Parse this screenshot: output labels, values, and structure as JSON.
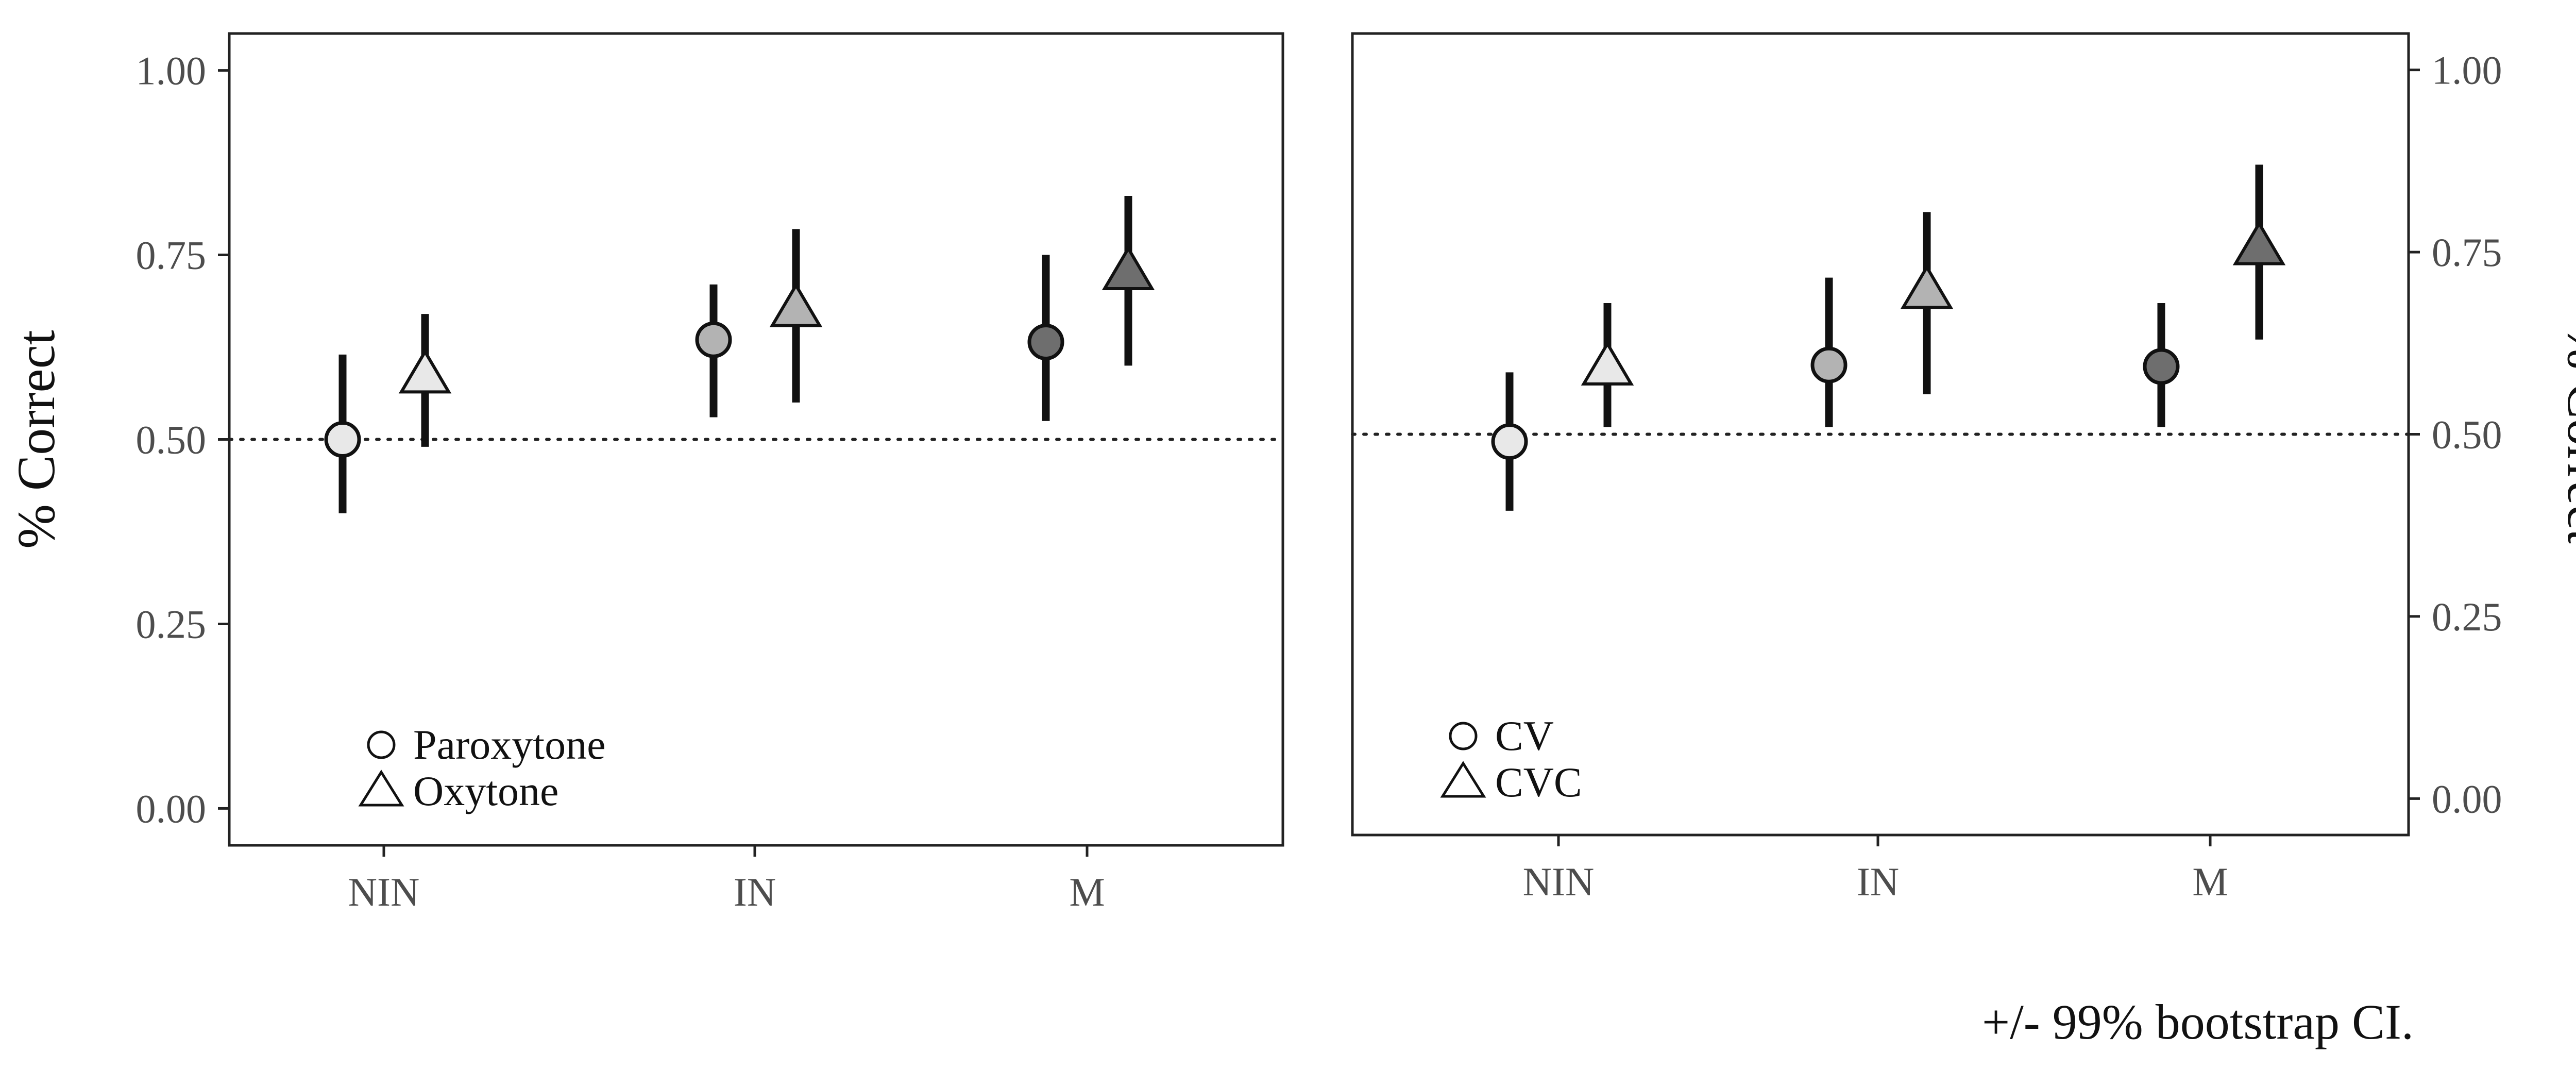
{
  "chart_data": [
    {
      "type": "scatter",
      "panel": "left",
      "categories": [
        "NIN",
        "IN",
        "M"
      ],
      "ylabel": "% Correct",
      "ylim": [
        -0.05,
        1.05
      ],
      "yticks": [
        "0.00",
        "0.25",
        "0.50",
        "0.75",
        "1.00"
      ],
      "reference_line": 0.5,
      "y_axis_side": "left",
      "fill_colors": {
        "NIN": "#e8e8e8",
        "IN": "#b3b3b3",
        "M": "#6e6e6e"
      },
      "series": [
        {
          "name": "Paroxytone",
          "marker": "circle",
          "values": [
            0.5,
            0.635,
            0.632
          ],
          "lower": [
            0.4,
            0.53,
            0.525
          ],
          "upper": [
            0.615,
            0.71,
            0.75
          ]
        },
        {
          "name": "Oxytone",
          "marker": "triangle",
          "values": [
            0.585,
            0.675,
            0.725
          ],
          "lower": [
            0.49,
            0.55,
            0.6
          ],
          "upper": [
            0.67,
            0.785,
            0.83
          ]
        }
      ],
      "legend_position": "bottom-left"
    },
    {
      "type": "scatter",
      "panel": "right",
      "categories": [
        "NIN",
        "IN",
        "M"
      ],
      "ylabel": "% Correct",
      "ylim": [
        -0.05,
        1.05
      ],
      "yticks": [
        "0.00",
        "0.25",
        "0.50",
        "0.75",
        "1.00"
      ],
      "reference_line": 0.5,
      "y_axis_side": "right",
      "fill_colors": {
        "NIN": "#e8e8e8",
        "IN": "#b3b3b3",
        "M": "#6e6e6e"
      },
      "series": [
        {
          "name": "CV",
          "marker": "circle",
          "values": [
            0.49,
            0.595,
            0.593
          ],
          "lower": [
            0.395,
            0.51,
            0.51
          ],
          "upper": [
            0.585,
            0.715,
            0.68
          ]
        },
        {
          "name": "CVC",
          "marker": "triangle",
          "values": [
            0.59,
            0.695,
            0.755
          ],
          "lower": [
            0.51,
            0.555,
            0.63
          ],
          "upper": [
            0.68,
            0.805,
            0.87
          ]
        }
      ],
      "legend_position": "bottom-left"
    }
  ],
  "caption": "+/- 99% bootstrap CI."
}
